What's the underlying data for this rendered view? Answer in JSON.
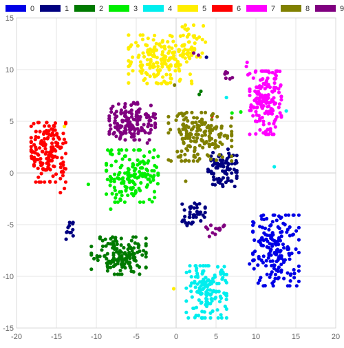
{
  "chart_data": {
    "type": "scatter",
    "title": "",
    "xlabel": "",
    "ylabel": "",
    "xlim": [
      -20,
      20
    ],
    "ylim": [
      -15,
      15
    ],
    "x_ticks": [
      -20,
      -15,
      -10,
      -5,
      0,
      5,
      10,
      15,
      20
    ],
    "y_ticks": [
      -15,
      -10,
      -5,
      0,
      5,
      10,
      15
    ],
    "grid": true,
    "legend_position": "top",
    "point_style": "filled-circle",
    "series": [
      {
        "name": "0",
        "color": "#0000e6",
        "clusters": [
          {
            "center": [
              12.5,
              -7.5
            ],
            "spread": [
              1.6,
              1.9
            ],
            "count": 180
          }
        ],
        "outliers": [
          [
            9.2,
            -8.8
          ],
          [
            9.8,
            -6.5
          ]
        ]
      },
      {
        "name": "1",
        "color": "#000080",
        "clusters": [
          {
            "center": [
              5.8,
              0.5
            ],
            "spread": [
              1.0,
              1.0
            ],
            "count": 80
          },
          {
            "center": [
              2.2,
              -4.0
            ],
            "spread": [
              0.8,
              0.6
            ],
            "count": 40
          },
          {
            "center": [
              -13.3,
              -5.6
            ],
            "spread": [
              0.35,
              0.45
            ],
            "count": 12
          }
        ],
        "outliers": [
          [
            3.8,
            11.2
          ]
        ]
      },
      {
        "name": "2",
        "color": "#007a00",
        "clusters": [
          {
            "center": [
              -7.2,
              -8.0
            ],
            "spread": [
              1.9,
              1.0
            ],
            "count": 150
          }
        ],
        "outliers": [
          [
            2.9,
            7.6
          ],
          [
            3.1,
            7.9
          ]
        ]
      },
      {
        "name": "3",
        "color": "#00ee00",
        "clusters": [
          {
            "center": [
              -5.5,
              -0.3
            ],
            "spread": [
              1.8,
              1.4
            ],
            "count": 160
          }
        ],
        "outliers": [
          [
            -11.0,
            -1.1
          ],
          [
            -8.2,
            -3.5
          ],
          [
            7.0,
            5.8
          ],
          [
            8.1,
            5.9
          ]
        ]
      },
      {
        "name": "4",
        "color": "#00eeee",
        "clusters": [
          {
            "center": [
              3.8,
              -11.5
            ],
            "spread": [
              1.4,
              1.4
            ],
            "count": 150
          }
        ],
        "outliers": [
          [
            6.3,
            7.3
          ],
          [
            12.3,
            0.6
          ],
          [
            13.8,
            6.0
          ]
        ]
      },
      {
        "name": "5",
        "color": "#ffee00",
        "clusters": [
          {
            "center": [
              -2.0,
              11.0
            ],
            "spread": [
              2.2,
              1.3
            ],
            "count": 170
          },
          {
            "center": [
              1.8,
              12.5
            ],
            "spread": [
              1.2,
              1.0
            ],
            "count": 50
          }
        ],
        "outliers": [
          [
            -0.3,
            -11.2
          ],
          [
            -14.0,
            4.5
          ]
        ]
      },
      {
        "name": "6",
        "color": "#ff0000",
        "clusters": [
          {
            "center": [
              -16.0,
              2.0
            ],
            "spread": [
              1.2,
              1.6
            ],
            "count": 170
          }
        ],
        "outliers": [
          [
            -14.0,
            -1.5
          ],
          [
            -14.5,
            -1.9
          ],
          [
            4.5,
            5.5
          ]
        ]
      },
      {
        "name": "7",
        "color": "#ff00ff",
        "clusters": [
          {
            "center": [
              11.2,
              6.8
            ],
            "spread": [
              1.1,
              1.7
            ],
            "count": 170
          }
        ],
        "outliers": [
          [
            8.8,
            10.3
          ],
          [
            8.9,
            10.7
          ],
          [
            9.0,
            9.5
          ]
        ]
      },
      {
        "name": "8",
        "color": "#808000",
        "clusters": [
          {
            "center": [
              3.0,
              3.5
            ],
            "spread": [
              2.2,
              1.3
            ],
            "count": 180
          }
        ],
        "outliers": [
          [
            1.2,
            -0.8
          ],
          [
            -0.2,
            8.5
          ]
        ]
      },
      {
        "name": "9",
        "color": "#800080",
        "clusters": [
          {
            "center": [
              -5.5,
              5.0
            ],
            "spread": [
              1.6,
              1.0
            ],
            "count": 150
          },
          {
            "center": [
              5.0,
              -5.6
            ],
            "spread": [
              0.7,
              0.3
            ],
            "count": 14
          },
          {
            "center": [
              6.5,
              9.3
            ],
            "spread": [
              0.3,
              0.3
            ],
            "count": 8
          }
        ],
        "outliers": [
          [
            2.2,
            11.6
          ],
          [
            2.8,
            11.4
          ],
          [
            -3.6,
            2.9
          ]
        ]
      }
    ]
  }
}
